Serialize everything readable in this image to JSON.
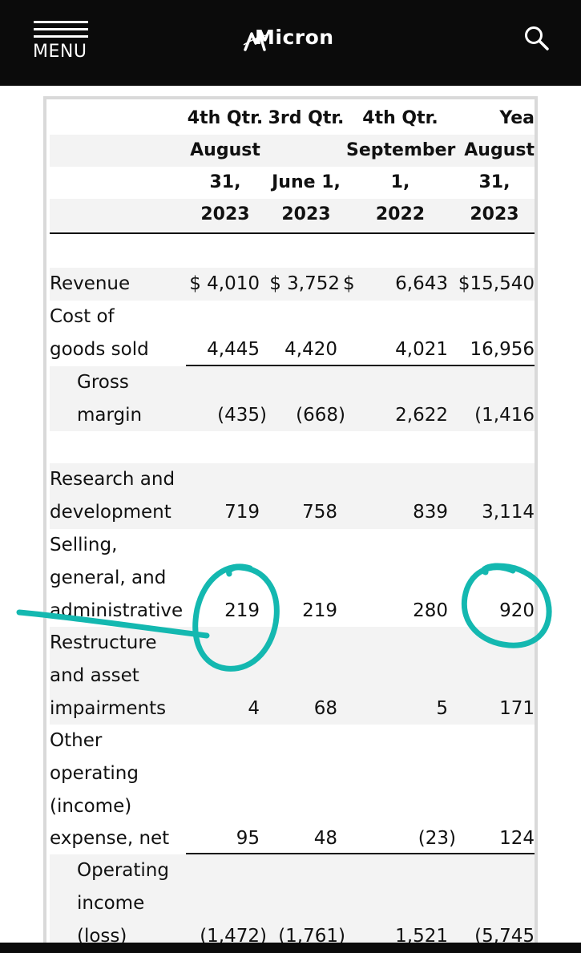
{
  "header": {
    "menu_label": "MENU",
    "logo_text": "Micron",
    "icons": [
      "hamburger-icon",
      "search-icon"
    ]
  },
  "table": {
    "columns": [
      {
        "line1": "4th Qtr.",
        "line2": "August",
        "line3": "31,",
        "line4": "2023"
      },
      {
        "line1": "3rd Qtr.",
        "line2": "",
        "line3": "June 1,",
        "line4": "2023"
      },
      {
        "line1": "4th Qtr.",
        "line2": "September",
        "line3": "1,",
        "line4": "2022"
      },
      {
        "line1": "Yea",
        "line2": "August",
        "line3": "31,",
        "line4": "2023"
      }
    ],
    "rows": {
      "revenue": {
        "label": "Revenue",
        "v1": "$ 4,010",
        "v2": "$ 3,752",
        "v3_cur": "$",
        "v3": "6,643",
        "v4": "$15,540"
      },
      "cogs": {
        "label1": "Cost of",
        "label2": "goods sold",
        "v1": "4,445",
        "v2": "4,420",
        "v3": "4,021",
        "v4": "16,956"
      },
      "gross": {
        "label1": "Gross",
        "label2": "margin",
        "v1": "(435)",
        "v2": "(668)",
        "v3": "2,622",
        "v4": "(1,416"
      },
      "rnd": {
        "label1": "Research and",
        "label2": "development",
        "v1": "719",
        "v2": "758",
        "v3": "839",
        "v4": "3,114"
      },
      "sga": {
        "label1": "Selling,",
        "label2": "general, and",
        "label3": "administrative",
        "v1": "219",
        "v2": "219",
        "v3": "280",
        "v4": "920"
      },
      "restructure": {
        "label1": "Restructure",
        "label2": "and asset",
        "label3": "impairments",
        "v1": "4",
        "v2": "68",
        "v3": "5",
        "v4": "171"
      },
      "other": {
        "label1": "Other",
        "label2": "operating",
        "label3": "(income)",
        "label4": "expense, net",
        "v1": "95",
        "v2": "48",
        "v3": "(23)",
        "v4": "124"
      },
      "opinc": {
        "label1": "Operating",
        "label2": "income",
        "label3": "(loss)",
        "v1": "(1,472)",
        "v2": "(1,761)",
        "v3": "1,521",
        "v4": "(5,745"
      }
    }
  },
  "annotation": {
    "color": "#14b8b0"
  }
}
